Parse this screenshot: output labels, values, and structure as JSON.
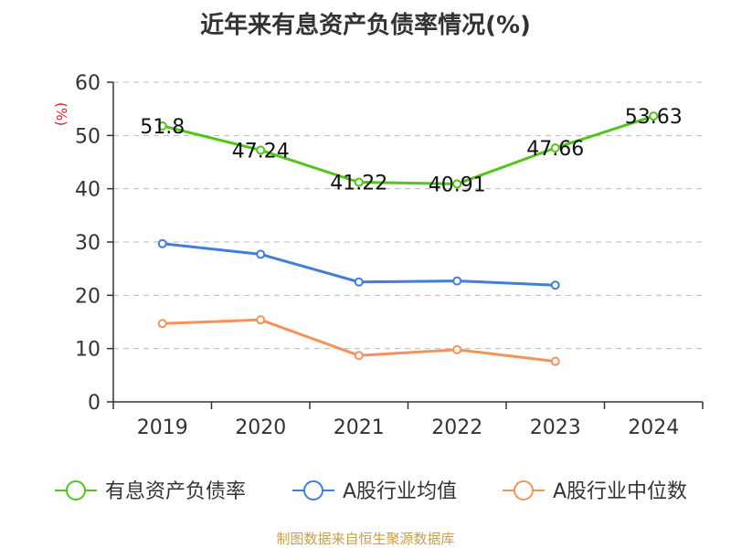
{
  "chart_data": {
    "type": "line",
    "title": "近年来有息资产负债率情况(%)",
    "ylabel": "(%)",
    "ylim": [
      0,
      60
    ],
    "yticks": [
      0,
      10,
      20,
      30,
      40,
      50,
      60
    ],
    "categories": [
      "2019",
      "2020",
      "2021",
      "2022",
      "2023",
      "2024"
    ],
    "grid": true,
    "legend_position": "bottom",
    "series": [
      {
        "name": "有息资产负债率",
        "color": "#52c41a",
        "values": [
          51.8,
          47.24,
          41.22,
          40.91,
          47.66,
          53.63
        ],
        "labels": [
          "51.8",
          "47.24",
          "41.22",
          "40.91",
          "47.66",
          "53.63"
        ]
      },
      {
        "name": "A股行业均值",
        "color": "#3f7fd8",
        "values": [
          29.7,
          27.7,
          22.5,
          22.7,
          21.9,
          null
        ]
      },
      {
        "name": "A股行业中位数",
        "color": "#f4925c",
        "values": [
          14.7,
          15.4,
          8.7,
          9.8,
          7.6,
          null
        ]
      }
    ]
  },
  "source": "制图数据来自恒生聚源数据库"
}
